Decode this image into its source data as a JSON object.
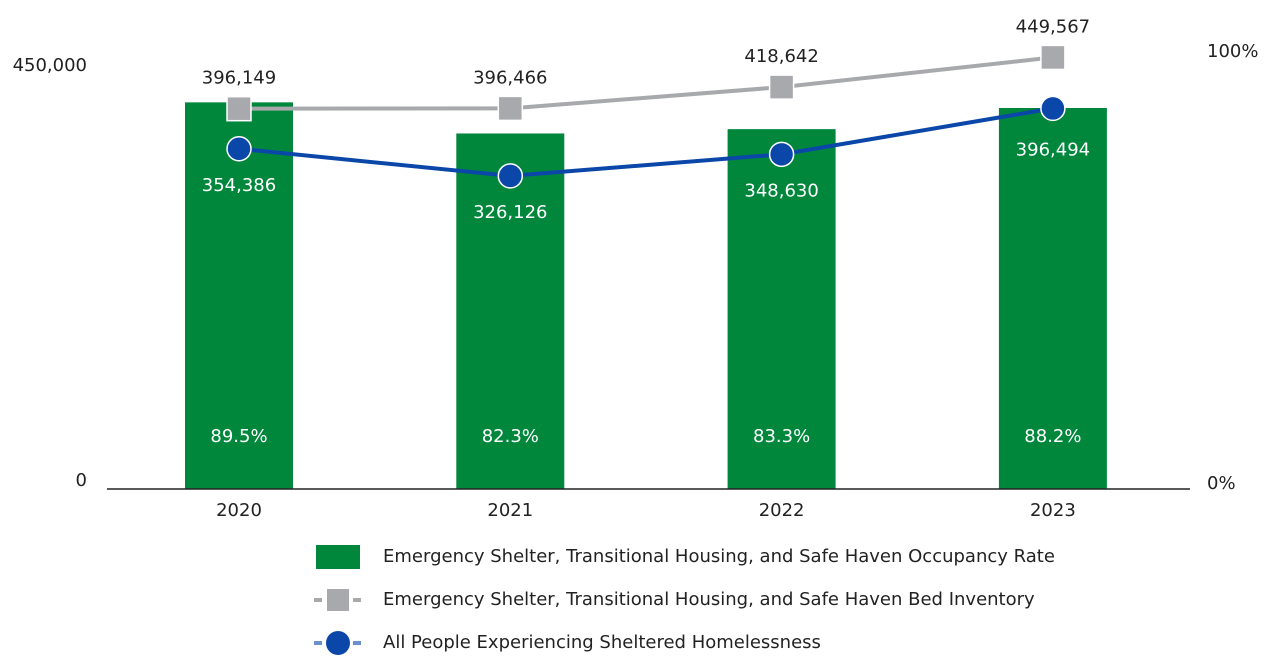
{
  "chart_data": {
    "type": "combo",
    "categories": [
      "2020",
      "2021",
      "2022",
      "2023"
    ],
    "ylim": [
      0,
      450000
    ],
    "yticks": [
      0,
      {
        "value": 450000,
        "label": "450,000"
      }
    ],
    "y2lim": [
      0,
      100
    ],
    "y2ticks": [
      {
        "value": 0,
        "label": "0%"
      },
      {
        "value": 100,
        "label": "100%"
      }
    ],
    "grid": false,
    "legend": "bottom",
    "series": [
      {
        "name": "Emergency Shelter, Transitional Housing, and Safe Haven Occupancy Rate",
        "type": "bar",
        "axis": "y2",
        "color": "#00873c",
        "values": [
          89.5,
          82.3,
          83.3,
          88.2
        ],
        "value_labels": [
          "89.5%",
          "82.3%",
          "83.3%",
          "88.2%"
        ]
      },
      {
        "name": "Emergency Shelter, Transitional Housing, and Safe Haven Bed Inventory",
        "type": "line",
        "marker": "square",
        "color": "#a7a9ac",
        "values": [
          396149,
          396466,
          418642,
          449567
        ],
        "value_labels": [
          "396,149",
          "396,466",
          "418,642",
          "449,567"
        ]
      },
      {
        "name": "All People Experiencing Sheltered Homelessness",
        "type": "line",
        "marker": "circle",
        "color": "#0b47a8",
        "values": [
          354386,
          326126,
          348630,
          396494
        ],
        "value_labels": [
          "354,386",
          "326,126",
          "348,630",
          "396,494"
        ]
      }
    ]
  }
}
